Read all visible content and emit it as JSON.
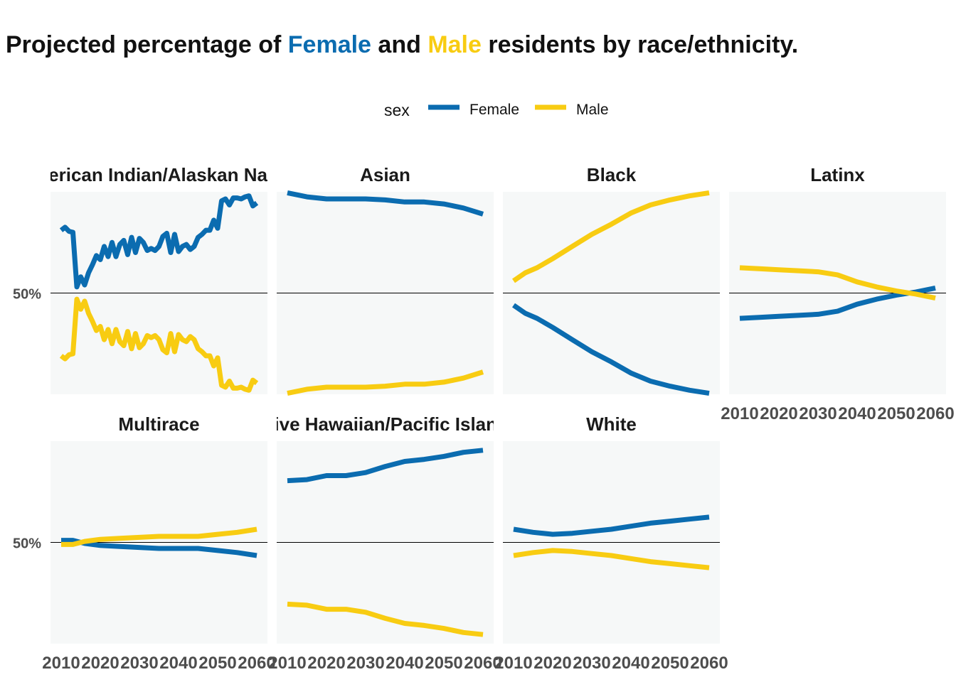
{
  "title": {
    "part1": "Projected percentage of ",
    "female": "Female",
    "part2": " and ",
    "male": "Male",
    "part3": " residents by race/ethnicity."
  },
  "colors": {
    "female": "#0b6cb0",
    "male": "#f8cc12",
    "panel_bg": "#f6f8f8",
    "reference_line": "#000000"
  },
  "chart_data": {
    "type": "line",
    "legend": {
      "title": "sex",
      "position": "top",
      "entries": [
        "Female",
        "Male"
      ]
    },
    "x_ticks": [
      "2010",
      "2020",
      "2030",
      "2040",
      "2050",
      "2060"
    ],
    "xlim": [
      2010,
      2060
    ],
    "y_reference": 50,
    "y_tick_label": "50%",
    "grid": false,
    "panels": [
      {
        "name": "American Indian/Alaskan Native",
        "ylim": [
          40,
          60
        ],
        "female": [
          [
            2010,
            56.2
          ],
          [
            2011,
            56.5
          ],
          [
            2012,
            56.1
          ],
          [
            2013,
            56.0
          ],
          [
            2014,
            50.6
          ],
          [
            2015,
            51.6
          ],
          [
            2016,
            50.8
          ],
          [
            2017,
            52.0
          ],
          [
            2018,
            52.8
          ],
          [
            2019,
            53.7
          ],
          [
            2020,
            53.3
          ],
          [
            2021,
            54.6
          ],
          [
            2022,
            53.6
          ],
          [
            2023,
            55.0
          ],
          [
            2024,
            53.6
          ],
          [
            2025,
            54.8
          ],
          [
            2026,
            55.2
          ],
          [
            2027,
            53.8
          ],
          [
            2028,
            55.5
          ],
          [
            2029,
            54.0
          ],
          [
            2030,
            55.4
          ],
          [
            2031,
            55.0
          ],
          [
            2032,
            54.2
          ],
          [
            2033,
            54.4
          ],
          [
            2034,
            54.2
          ],
          [
            2035,
            54.6
          ],
          [
            2036,
            55.6
          ],
          [
            2037,
            55.9
          ],
          [
            2038,
            54.0
          ],
          [
            2039,
            55.8
          ],
          [
            2040,
            54.1
          ],
          [
            2041,
            54.6
          ],
          [
            2042,
            54.8
          ],
          [
            2043,
            54.3
          ],
          [
            2044,
            54.6
          ],
          [
            2045,
            55.5
          ],
          [
            2046,
            55.8
          ],
          [
            2047,
            56.2
          ],
          [
            2048,
            56.2
          ],
          [
            2049,
            57.2
          ],
          [
            2050,
            56.4
          ],
          [
            2051,
            59.1
          ],
          [
            2052,
            59.3
          ],
          [
            2053,
            58.7
          ],
          [
            2054,
            59.4
          ],
          [
            2055,
            59.4
          ],
          [
            2056,
            59.3
          ],
          [
            2057,
            59.5
          ],
          [
            2058,
            59.6
          ],
          [
            2059,
            58.6
          ],
          [
            2060,
            58.9
          ]
        ],
        "male": [
          [
            2010,
            43.8
          ],
          [
            2011,
            43.5
          ],
          [
            2012,
            43.9
          ],
          [
            2013,
            44.0
          ],
          [
            2014,
            49.4
          ],
          [
            2015,
            48.4
          ],
          [
            2016,
            49.2
          ],
          [
            2017,
            48.0
          ],
          [
            2018,
            47.2
          ],
          [
            2019,
            46.3
          ],
          [
            2020,
            46.7
          ],
          [
            2021,
            45.4
          ],
          [
            2022,
            46.4
          ],
          [
            2023,
            45.0
          ],
          [
            2024,
            46.4
          ],
          [
            2025,
            45.2
          ],
          [
            2026,
            44.8
          ],
          [
            2027,
            46.2
          ],
          [
            2028,
            44.5
          ],
          [
            2029,
            46.0
          ],
          [
            2030,
            44.6
          ],
          [
            2031,
            45.0
          ],
          [
            2032,
            45.8
          ],
          [
            2033,
            45.6
          ],
          [
            2034,
            45.8
          ],
          [
            2035,
            45.4
          ],
          [
            2036,
            44.4
          ],
          [
            2037,
            44.1
          ],
          [
            2038,
            46.0
          ],
          [
            2039,
            44.2
          ],
          [
            2040,
            45.9
          ],
          [
            2041,
            45.4
          ],
          [
            2042,
            45.2
          ],
          [
            2043,
            45.7
          ],
          [
            2044,
            45.4
          ],
          [
            2045,
            44.5
          ],
          [
            2046,
            44.2
          ],
          [
            2047,
            43.8
          ],
          [
            2048,
            43.8
          ],
          [
            2049,
            42.8
          ],
          [
            2050,
            43.6
          ],
          [
            2051,
            40.9
          ],
          [
            2052,
            40.7
          ],
          [
            2053,
            41.3
          ],
          [
            2054,
            40.6
          ],
          [
            2055,
            40.6
          ],
          [
            2056,
            40.7
          ],
          [
            2057,
            40.5
          ],
          [
            2058,
            40.4
          ],
          [
            2059,
            41.4
          ],
          [
            2060,
            41.1
          ]
        ]
      },
      {
        "name": "Asian",
        "ylim": [
          40,
          60
        ],
        "female": [
          [
            2010,
            59.9
          ],
          [
            2015,
            59.5
          ],
          [
            2020,
            59.3
          ],
          [
            2025,
            59.3
          ],
          [
            2030,
            59.3
          ],
          [
            2035,
            59.2
          ],
          [
            2040,
            59.0
          ],
          [
            2045,
            59.0
          ],
          [
            2050,
            58.8
          ],
          [
            2055,
            58.4
          ],
          [
            2060,
            57.8
          ]
        ],
        "male": [
          [
            2010,
            40.1
          ],
          [
            2015,
            40.5
          ],
          [
            2020,
            40.7
          ],
          [
            2025,
            40.7
          ],
          [
            2030,
            40.7
          ],
          [
            2035,
            40.8
          ],
          [
            2040,
            41.0
          ],
          [
            2045,
            41.0
          ],
          [
            2050,
            41.2
          ],
          [
            2055,
            41.6
          ],
          [
            2060,
            42.2
          ]
        ]
      },
      {
        "name": "Black",
        "ylim": [
          40,
          60
        ],
        "female": [
          [
            2010,
            48.8
          ],
          [
            2013,
            48.0
          ],
          [
            2016,
            47.5
          ],
          [
            2020,
            46.6
          ],
          [
            2025,
            45.4
          ],
          [
            2030,
            44.2
          ],
          [
            2035,
            43.2
          ],
          [
            2040,
            42.1
          ],
          [
            2045,
            41.3
          ],
          [
            2050,
            40.8
          ],
          [
            2055,
            40.4
          ],
          [
            2060,
            40.1
          ]
        ],
        "male": [
          [
            2010,
            51.2
          ],
          [
            2013,
            52.0
          ],
          [
            2016,
            52.5
          ],
          [
            2020,
            53.4
          ],
          [
            2025,
            54.6
          ],
          [
            2030,
            55.8
          ],
          [
            2035,
            56.8
          ],
          [
            2040,
            57.9
          ],
          [
            2045,
            58.7
          ],
          [
            2050,
            59.2
          ],
          [
            2055,
            59.6
          ],
          [
            2060,
            59.9
          ]
        ]
      },
      {
        "name": "Latinx",
        "ylim": [
          40,
          60
        ],
        "female": [
          [
            2010,
            47.5
          ],
          [
            2015,
            47.6
          ],
          [
            2020,
            47.7
          ],
          [
            2025,
            47.8
          ],
          [
            2030,
            47.9
          ],
          [
            2035,
            48.2
          ],
          [
            2040,
            48.9
          ],
          [
            2045,
            49.4
          ],
          [
            2050,
            49.8
          ],
          [
            2055,
            50.1
          ],
          [
            2060,
            50.5
          ]
        ],
        "male": [
          [
            2010,
            52.5
          ],
          [
            2015,
            52.4
          ],
          [
            2020,
            52.3
          ],
          [
            2025,
            52.2
          ],
          [
            2030,
            52.1
          ],
          [
            2035,
            51.8
          ],
          [
            2040,
            51.1
          ],
          [
            2045,
            50.6
          ],
          [
            2050,
            50.2
          ],
          [
            2055,
            49.9
          ],
          [
            2060,
            49.5
          ]
        ]
      },
      {
        "name": "Multirace",
        "ylim": [
          40,
          60
        ],
        "female": [
          [
            2010,
            50.2
          ],
          [
            2013,
            50.2
          ],
          [
            2016,
            49.9
          ],
          [
            2020,
            49.7
          ],
          [
            2025,
            49.6
          ],
          [
            2030,
            49.5
          ],
          [
            2035,
            49.4
          ],
          [
            2040,
            49.4
          ],
          [
            2045,
            49.4
          ],
          [
            2050,
            49.2
          ],
          [
            2055,
            49.0
          ],
          [
            2060,
            48.7
          ]
        ],
        "male": [
          [
            2010,
            49.8
          ],
          [
            2013,
            49.8
          ],
          [
            2016,
            50.1
          ],
          [
            2020,
            50.3
          ],
          [
            2025,
            50.4
          ],
          [
            2030,
            50.5
          ],
          [
            2035,
            50.6
          ],
          [
            2040,
            50.6
          ],
          [
            2045,
            50.6
          ],
          [
            2050,
            50.8
          ],
          [
            2055,
            51.0
          ],
          [
            2060,
            51.3
          ]
        ]
      },
      {
        "name": "Native Hawaiian/Pacific Islander",
        "ylim": [
          40,
          60
        ],
        "female": [
          [
            2010,
            56.1
          ],
          [
            2015,
            56.2
          ],
          [
            2020,
            56.6
          ],
          [
            2025,
            56.6
          ],
          [
            2030,
            56.9
          ],
          [
            2035,
            57.5
          ],
          [
            2040,
            58.0
          ],
          [
            2045,
            58.2
          ],
          [
            2050,
            58.5
          ],
          [
            2055,
            58.9
          ],
          [
            2060,
            59.1
          ]
        ],
        "male": [
          [
            2010,
            43.9
          ],
          [
            2015,
            43.8
          ],
          [
            2020,
            43.4
          ],
          [
            2025,
            43.4
          ],
          [
            2030,
            43.1
          ],
          [
            2035,
            42.5
          ],
          [
            2040,
            42.0
          ],
          [
            2045,
            41.8
          ],
          [
            2050,
            41.5
          ],
          [
            2055,
            41.1
          ],
          [
            2060,
            40.9
          ]
        ]
      },
      {
        "name": "White",
        "ylim": [
          40,
          60
        ],
        "female": [
          [
            2010,
            51.3
          ],
          [
            2015,
            51.0
          ],
          [
            2020,
            50.8
          ],
          [
            2025,
            50.9
          ],
          [
            2030,
            51.1
          ],
          [
            2035,
            51.3
          ],
          [
            2040,
            51.6
          ],
          [
            2045,
            51.9
          ],
          [
            2050,
            52.1
          ],
          [
            2055,
            52.3
          ],
          [
            2060,
            52.5
          ]
        ],
        "male": [
          [
            2010,
            48.7
          ],
          [
            2015,
            49.0
          ],
          [
            2020,
            49.2
          ],
          [
            2025,
            49.1
          ],
          [
            2030,
            48.9
          ],
          [
            2035,
            48.7
          ],
          [
            2040,
            48.4
          ],
          [
            2045,
            48.1
          ],
          [
            2050,
            47.9
          ],
          [
            2055,
            47.7
          ],
          [
            2060,
            47.5
          ]
        ]
      }
    ]
  }
}
